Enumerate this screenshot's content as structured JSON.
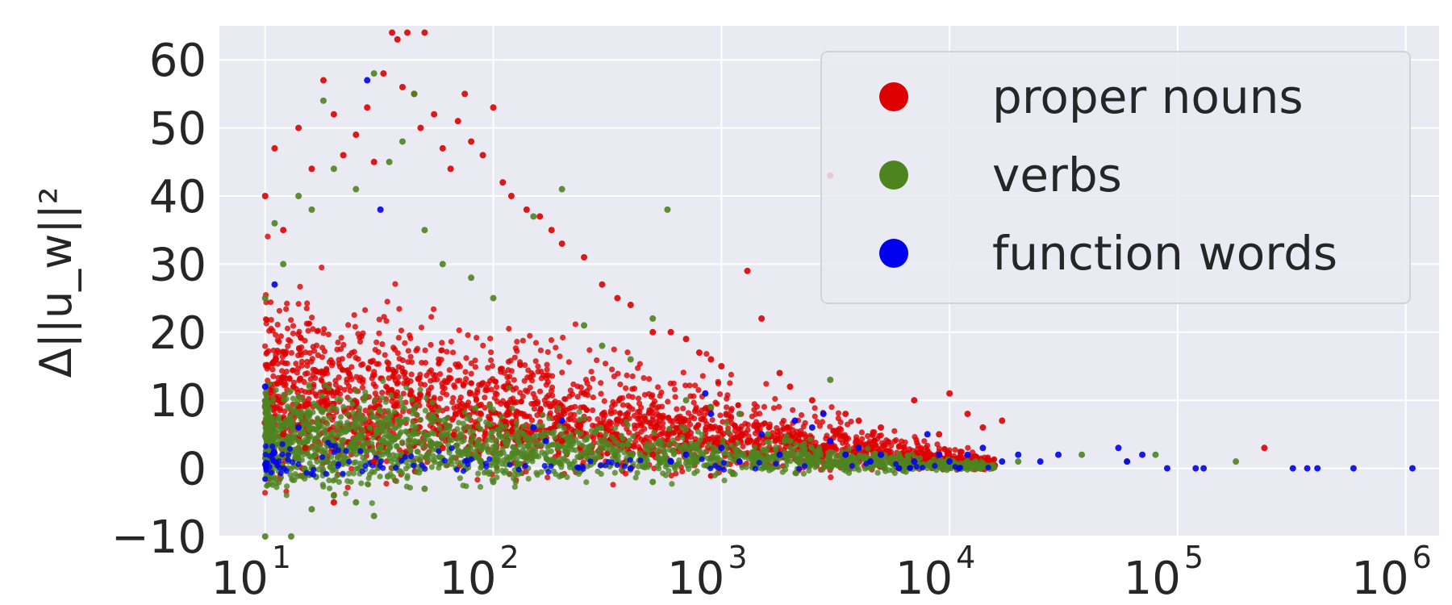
{
  "chart_data": {
    "type": "scatter",
    "title": "",
    "xlabel": "",
    "ylabel": "Δ||u_w||²",
    "xscale": "log",
    "xlim": [
      6.3,
      1400000
    ],
    "ylim": [
      -10,
      65
    ],
    "grid": true,
    "legend_position": "top-right",
    "background_color": "#eaeaf2",
    "x_ticks": [
      {
        "base": "10",
        "exp": "1",
        "value": 10
      },
      {
        "base": "10",
        "exp": "2",
        "value": 100
      },
      {
        "base": "10",
        "exp": "3",
        "value": 1000
      },
      {
        "base": "10",
        "exp": "4",
        "value": 10000
      },
      {
        "base": "10",
        "exp": "5",
        "value": 100000
      },
      {
        "base": "10",
        "exp": "6",
        "value": 1000000
      }
    ],
    "y_ticks": [
      {
        "label": "−10",
        "value": -10
      },
      {
        "label": "0",
        "value": 0
      },
      {
        "label": "10",
        "value": 10
      },
      {
        "label": "20",
        "value": 20
      },
      {
        "label": "30",
        "value": 30
      },
      {
        "label": "40",
        "value": 40
      },
      {
        "label": "50",
        "value": 50
      },
      {
        "label": "60",
        "value": 60
      }
    ],
    "series": [
      {
        "name": "proper nouns",
        "color": "#dd0000",
        "points": [
          [
            10,
            40
          ],
          [
            11,
            47
          ],
          [
            12,
            35
          ],
          [
            14,
            50
          ],
          [
            16,
            44
          ],
          [
            18,
            57
          ],
          [
            20,
            52
          ],
          [
            22,
            46
          ],
          [
            25,
            49
          ],
          [
            28,
            53
          ],
          [
            30,
            45
          ],
          [
            33,
            58
          ],
          [
            36,
            64
          ],
          [
            38,
            63
          ],
          [
            40,
            56
          ],
          [
            42,
            64
          ],
          [
            45,
            55
          ],
          [
            48,
            50
          ],
          [
            50,
            64
          ],
          [
            55,
            52
          ],
          [
            60,
            47
          ],
          [
            65,
            44
          ],
          [
            70,
            51
          ],
          [
            75,
            55
          ],
          [
            80,
            48
          ],
          [
            90,
            46
          ],
          [
            100,
            53
          ],
          [
            110,
            42
          ],
          [
            120,
            40
          ],
          [
            140,
            38
          ],
          [
            160,
            37
          ],
          [
            180,
            35
          ],
          [
            200,
            33
          ],
          [
            250,
            31
          ],
          [
            300,
            27
          ],
          [
            350,
            25
          ],
          [
            400,
            24
          ],
          [
            500,
            20
          ],
          [
            600,
            20
          ],
          [
            700,
            19
          ],
          [
            800,
            17
          ],
          [
            900,
            16
          ],
          [
            1000,
            15
          ],
          [
            1300,
            29
          ],
          [
            1500,
            22
          ],
          [
            1800,
            14
          ],
          [
            2000,
            12
          ],
          [
            2500,
            10
          ],
          [
            3000,
            43
          ],
          [
            3500,
            8
          ],
          [
            4000,
            7
          ],
          [
            5000,
            6
          ],
          [
            7000,
            10
          ],
          [
            9000,
            5
          ],
          [
            10000,
            11
          ],
          [
            12000,
            8
          ],
          [
            14000,
            6
          ],
          [
            17000,
            7
          ],
          [
            12,
            5
          ],
          [
            15,
            3
          ],
          [
            20,
            -5
          ],
          [
            30,
            1
          ],
          [
            60,
            3
          ],
          [
            200,
            4
          ],
          [
            500,
            2
          ],
          [
            240000,
            3
          ]
        ]
      },
      {
        "name": "verbs",
        "color": "#4e8420",
        "points": [
          [
            10,
            25
          ],
          [
            11,
            36
          ],
          [
            12,
            30
          ],
          [
            14,
            40
          ],
          [
            16,
            38
          ],
          [
            18,
            54
          ],
          [
            20,
            44
          ],
          [
            25,
            41
          ],
          [
            30,
            58
          ],
          [
            35,
            45
          ],
          [
            40,
            48
          ],
          [
            45,
            55
          ],
          [
            50,
            35
          ],
          [
            60,
            30
          ],
          [
            80,
            28
          ],
          [
            100,
            25
          ],
          [
            150,
            37
          ],
          [
            200,
            41
          ],
          [
            250,
            21
          ],
          [
            300,
            18
          ],
          [
            400,
            16
          ],
          [
            500,
            22
          ],
          [
            580,
            38
          ],
          [
            700,
            10
          ],
          [
            900,
            9
          ],
          [
            1200,
            8
          ],
          [
            1600,
            5
          ],
          [
            2000,
            4
          ],
          [
            3000,
            13
          ],
          [
            4000,
            3
          ],
          [
            6000,
            2
          ],
          [
            9000,
            1
          ],
          [
            13000,
            1
          ],
          [
            20000,
            1
          ],
          [
            38000,
            2
          ],
          [
            60000,
            1
          ],
          [
            80000,
            2
          ],
          [
            180000,
            1
          ],
          [
            10,
            -10
          ],
          [
            11,
            -11
          ],
          [
            13,
            -10
          ],
          [
            16,
            -6
          ],
          [
            20,
            -4
          ],
          [
            25,
            -5
          ],
          [
            30,
            -7
          ],
          [
            50,
            -3
          ],
          [
            100,
            -2
          ],
          [
            200,
            -1
          ],
          [
            500,
            -2
          ]
        ]
      },
      {
        "name": "function words",
        "color": "#0000ee",
        "points": [
          [
            10,
            12
          ],
          [
            11,
            27
          ],
          [
            14,
            6
          ],
          [
            28,
            57
          ],
          [
            32,
            38
          ],
          [
            150,
            6
          ],
          [
            200,
            7
          ],
          [
            170,
            4
          ],
          [
            400,
            0
          ],
          [
            600,
            1
          ],
          [
            700,
            2
          ],
          [
            850,
            11
          ],
          [
            900,
            8
          ],
          [
            1000,
            3
          ],
          [
            1200,
            1
          ],
          [
            1500,
            5
          ],
          [
            1800,
            2
          ],
          [
            2100,
            7
          ],
          [
            2500,
            6
          ],
          [
            2800,
            8
          ],
          [
            3000,
            4
          ],
          [
            3500,
            2
          ],
          [
            4000,
            3
          ],
          [
            4500,
            1
          ],
          [
            5000,
            2
          ],
          [
            6000,
            0
          ],
          [
            7000,
            1
          ],
          [
            8000,
            5
          ],
          [
            9000,
            2
          ],
          [
            10000,
            1
          ],
          [
            11000,
            0
          ],
          [
            12000,
            2
          ],
          [
            14000,
            3
          ],
          [
            17000,
            1
          ],
          [
            20000,
            2
          ],
          [
            25000,
            1
          ],
          [
            30000,
            2
          ],
          [
            55000,
            3
          ],
          [
            60000,
            1
          ],
          [
            70000,
            2
          ],
          [
            90000,
            0
          ],
          [
            120000,
            0
          ],
          [
            130000,
            0
          ],
          [
            320000,
            0
          ],
          [
            370000,
            0
          ],
          [
            410000,
            0
          ],
          [
            590000,
            0
          ],
          [
            1070000,
            0
          ]
        ]
      }
    ]
  }
}
